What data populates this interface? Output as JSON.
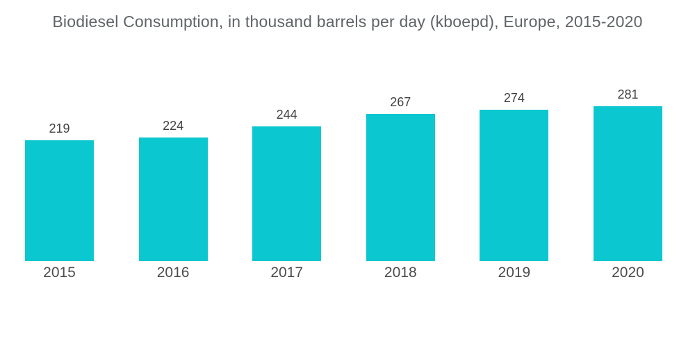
{
  "page": {
    "background_color": "#ffffff"
  },
  "chart_data": {
    "type": "bar",
    "title": "Biodiesel Consumption, in thousand barrels per day (kboepd), Europe, 2015-2020",
    "categories": [
      "2015",
      "2016",
      "2017",
      "2018",
      "2019",
      "2020"
    ],
    "values": [
      219,
      224,
      244,
      267,
      274,
      281
    ],
    "series_name": "Biodiesel Consumption (kboepd)",
    "xlabel": "",
    "ylabel": "",
    "ylim": [
      0,
      473
    ],
    "grid": false,
    "legend_position": "none",
    "value_labels_shown": true,
    "bar_color": "#0bc7d0",
    "title_color": "#5f6467",
    "value_label_color": "#3f4142",
    "category_label_color": "#4b4c4e"
  }
}
